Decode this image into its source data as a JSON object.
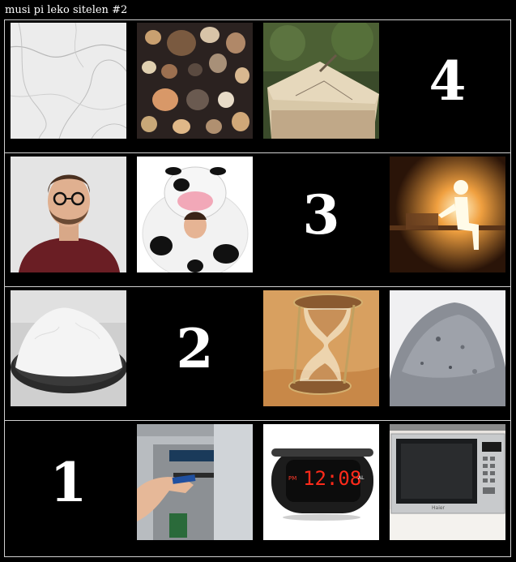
{
  "title": "musi pi leko sitelen #2",
  "grid": {
    "rows": [
      [
        {
          "kind": "image",
          "name": "marble-tile"
        },
        {
          "kind": "image",
          "name": "seashells-tile"
        },
        {
          "kind": "image",
          "name": "sundial-tile"
        },
        {
          "kind": "number",
          "value": "4"
        }
      ],
      [
        {
          "kind": "image",
          "name": "bearded-man-tile"
        },
        {
          "kind": "image",
          "name": "cow-costume-tile"
        },
        {
          "kind": "number",
          "value": "3"
        },
        {
          "kind": "image",
          "name": "glowing-figure-tile"
        }
      ],
      [
        {
          "kind": "image",
          "name": "salt-bowl-tile"
        },
        {
          "kind": "number",
          "value": "2"
        },
        {
          "kind": "image",
          "name": "hourglass-tile"
        },
        {
          "kind": "image",
          "name": "ash-pile-tile"
        }
      ],
      [
        {
          "kind": "number",
          "value": "1"
        },
        {
          "kind": "image",
          "name": "atm-card-tile"
        },
        {
          "kind": "image",
          "name": "alarm-clock-tile"
        },
        {
          "kind": "image",
          "name": "microwave-tile"
        }
      ]
    ]
  },
  "clock_display": "12:08",
  "clock_am_label": "AL",
  "clock_pm_label": "PM",
  "microwave_brand": "Haier"
}
